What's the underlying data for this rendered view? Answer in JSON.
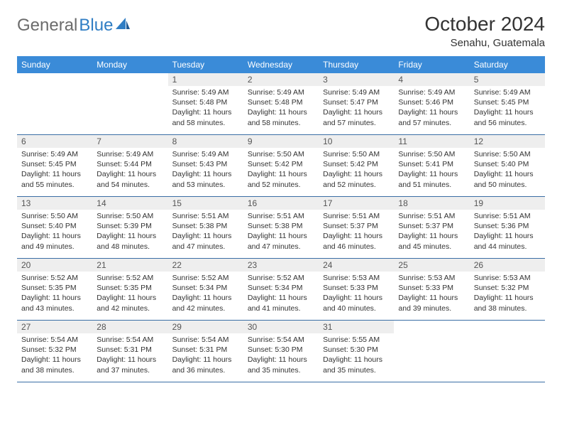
{
  "brand": {
    "part1": "General",
    "part2": "Blue"
  },
  "title": "October 2024",
  "location": "Senahu, Guatemala",
  "colors": {
    "header_bg": "#3a8bd8",
    "header_fg": "#ffffff",
    "daynum_bg": "#eeeeee",
    "row_border": "#3a6ea5",
    "logo_gray": "#6b6b6b",
    "logo_blue": "#2f7dc4"
  },
  "weekdays": [
    "Sunday",
    "Monday",
    "Tuesday",
    "Wednesday",
    "Thursday",
    "Friday",
    "Saturday"
  ],
  "weeks": [
    [
      null,
      null,
      {
        "n": "1",
        "sr": "Sunrise: 5:49 AM",
        "ss": "Sunset: 5:48 PM",
        "d1": "Daylight: 11 hours",
        "d2": "and 58 minutes."
      },
      {
        "n": "2",
        "sr": "Sunrise: 5:49 AM",
        "ss": "Sunset: 5:48 PM",
        "d1": "Daylight: 11 hours",
        "d2": "and 58 minutes."
      },
      {
        "n": "3",
        "sr": "Sunrise: 5:49 AM",
        "ss": "Sunset: 5:47 PM",
        "d1": "Daylight: 11 hours",
        "d2": "and 57 minutes."
      },
      {
        "n": "4",
        "sr": "Sunrise: 5:49 AM",
        "ss": "Sunset: 5:46 PM",
        "d1": "Daylight: 11 hours",
        "d2": "and 57 minutes."
      },
      {
        "n": "5",
        "sr": "Sunrise: 5:49 AM",
        "ss": "Sunset: 5:45 PM",
        "d1": "Daylight: 11 hours",
        "d2": "and 56 minutes."
      }
    ],
    [
      {
        "n": "6",
        "sr": "Sunrise: 5:49 AM",
        "ss": "Sunset: 5:45 PM",
        "d1": "Daylight: 11 hours",
        "d2": "and 55 minutes."
      },
      {
        "n": "7",
        "sr": "Sunrise: 5:49 AM",
        "ss": "Sunset: 5:44 PM",
        "d1": "Daylight: 11 hours",
        "d2": "and 54 minutes."
      },
      {
        "n": "8",
        "sr": "Sunrise: 5:49 AM",
        "ss": "Sunset: 5:43 PM",
        "d1": "Daylight: 11 hours",
        "d2": "and 53 minutes."
      },
      {
        "n": "9",
        "sr": "Sunrise: 5:50 AM",
        "ss": "Sunset: 5:42 PM",
        "d1": "Daylight: 11 hours",
        "d2": "and 52 minutes."
      },
      {
        "n": "10",
        "sr": "Sunrise: 5:50 AM",
        "ss": "Sunset: 5:42 PM",
        "d1": "Daylight: 11 hours",
        "d2": "and 52 minutes."
      },
      {
        "n": "11",
        "sr": "Sunrise: 5:50 AM",
        "ss": "Sunset: 5:41 PM",
        "d1": "Daylight: 11 hours",
        "d2": "and 51 minutes."
      },
      {
        "n": "12",
        "sr": "Sunrise: 5:50 AM",
        "ss": "Sunset: 5:40 PM",
        "d1": "Daylight: 11 hours",
        "d2": "and 50 minutes."
      }
    ],
    [
      {
        "n": "13",
        "sr": "Sunrise: 5:50 AM",
        "ss": "Sunset: 5:40 PM",
        "d1": "Daylight: 11 hours",
        "d2": "and 49 minutes."
      },
      {
        "n": "14",
        "sr": "Sunrise: 5:50 AM",
        "ss": "Sunset: 5:39 PM",
        "d1": "Daylight: 11 hours",
        "d2": "and 48 minutes."
      },
      {
        "n": "15",
        "sr": "Sunrise: 5:51 AM",
        "ss": "Sunset: 5:38 PM",
        "d1": "Daylight: 11 hours",
        "d2": "and 47 minutes."
      },
      {
        "n": "16",
        "sr": "Sunrise: 5:51 AM",
        "ss": "Sunset: 5:38 PM",
        "d1": "Daylight: 11 hours",
        "d2": "and 47 minutes."
      },
      {
        "n": "17",
        "sr": "Sunrise: 5:51 AM",
        "ss": "Sunset: 5:37 PM",
        "d1": "Daylight: 11 hours",
        "d2": "and 46 minutes."
      },
      {
        "n": "18",
        "sr": "Sunrise: 5:51 AM",
        "ss": "Sunset: 5:37 PM",
        "d1": "Daylight: 11 hours",
        "d2": "and 45 minutes."
      },
      {
        "n": "19",
        "sr": "Sunrise: 5:51 AM",
        "ss": "Sunset: 5:36 PM",
        "d1": "Daylight: 11 hours",
        "d2": "and 44 minutes."
      }
    ],
    [
      {
        "n": "20",
        "sr": "Sunrise: 5:52 AM",
        "ss": "Sunset: 5:35 PM",
        "d1": "Daylight: 11 hours",
        "d2": "and 43 minutes."
      },
      {
        "n": "21",
        "sr": "Sunrise: 5:52 AM",
        "ss": "Sunset: 5:35 PM",
        "d1": "Daylight: 11 hours",
        "d2": "and 42 minutes."
      },
      {
        "n": "22",
        "sr": "Sunrise: 5:52 AM",
        "ss": "Sunset: 5:34 PM",
        "d1": "Daylight: 11 hours",
        "d2": "and 42 minutes."
      },
      {
        "n": "23",
        "sr": "Sunrise: 5:52 AM",
        "ss": "Sunset: 5:34 PM",
        "d1": "Daylight: 11 hours",
        "d2": "and 41 minutes."
      },
      {
        "n": "24",
        "sr": "Sunrise: 5:53 AM",
        "ss": "Sunset: 5:33 PM",
        "d1": "Daylight: 11 hours",
        "d2": "and 40 minutes."
      },
      {
        "n": "25",
        "sr": "Sunrise: 5:53 AM",
        "ss": "Sunset: 5:33 PM",
        "d1": "Daylight: 11 hours",
        "d2": "and 39 minutes."
      },
      {
        "n": "26",
        "sr": "Sunrise: 5:53 AM",
        "ss": "Sunset: 5:32 PM",
        "d1": "Daylight: 11 hours",
        "d2": "and 38 minutes."
      }
    ],
    [
      {
        "n": "27",
        "sr": "Sunrise: 5:54 AM",
        "ss": "Sunset: 5:32 PM",
        "d1": "Daylight: 11 hours",
        "d2": "and 38 minutes."
      },
      {
        "n": "28",
        "sr": "Sunrise: 5:54 AM",
        "ss": "Sunset: 5:31 PM",
        "d1": "Daylight: 11 hours",
        "d2": "and 37 minutes."
      },
      {
        "n": "29",
        "sr": "Sunrise: 5:54 AM",
        "ss": "Sunset: 5:31 PM",
        "d1": "Daylight: 11 hours",
        "d2": "and 36 minutes."
      },
      {
        "n": "30",
        "sr": "Sunrise: 5:54 AM",
        "ss": "Sunset: 5:30 PM",
        "d1": "Daylight: 11 hours",
        "d2": "and 35 minutes."
      },
      {
        "n": "31",
        "sr": "Sunrise: 5:55 AM",
        "ss": "Sunset: 5:30 PM",
        "d1": "Daylight: 11 hours",
        "d2": "and 35 minutes."
      },
      null,
      null
    ]
  ]
}
